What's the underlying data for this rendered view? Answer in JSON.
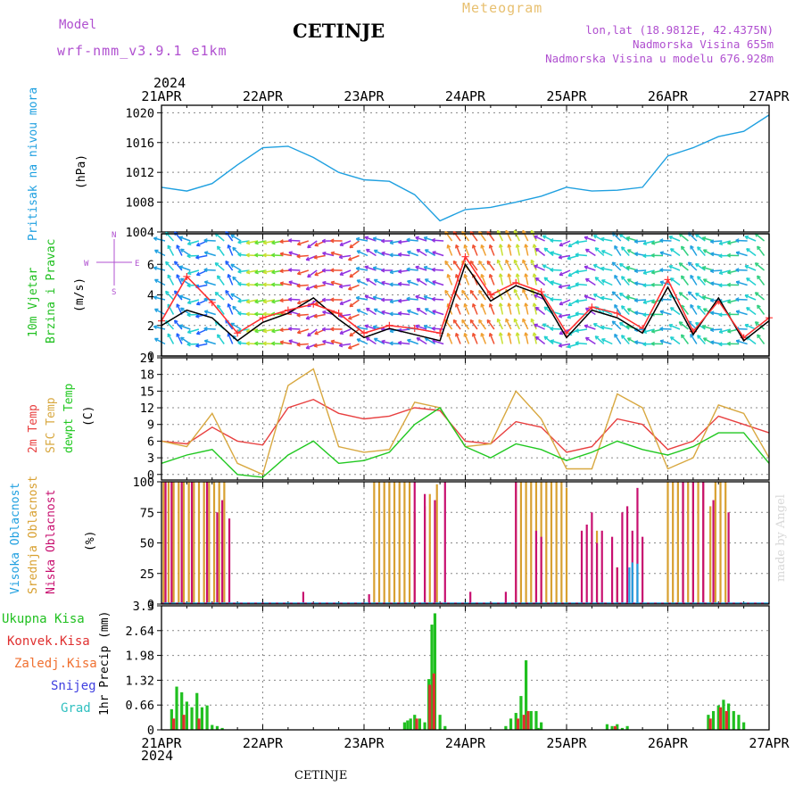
{
  "header": {
    "model_label": "Model",
    "model_name": "wrf-nmm_v3.9.1  e1km",
    "station": "CETINJE",
    "product": "Meteogram",
    "coords": "lon,lat (18.9812E, 42.4375N)",
    "elevation": "Nadmorska Visina 655m",
    "model_elevation": "Nadmorska Visina u modelu 676.928m",
    "year": "2024",
    "footer_station": "CETINJE",
    "credit": "made by Angel"
  },
  "colors": {
    "pressure": "#1fa0e0",
    "wind_speed": "#000000",
    "gust": "#ff3030",
    "temp2m": "#e84040",
    "sfc_temp": "#d8a840",
    "dewpt": "#20c820",
    "high_cloud": "#20a0e0",
    "mid_cloud": "#d8a030",
    "low_cloud": "#c81070",
    "total_precip": "#20c020",
    "convective": "#e03030",
    "frozen": "#f07030",
    "snow": "#4040e0",
    "graupel": "#30c0c0",
    "label_purple": "#b050d0"
  },
  "x_axis": {
    "categories": [
      "21APR",
      "22APR",
      "23APR",
      "24APR",
      "25APR",
      "26APR",
      "27APR"
    ]
  },
  "panels": {
    "pressure": {
      "ylabel_main": "Pritisak na nivou mora",
      "unit": "(hPa)"
    },
    "wind": {
      "ylabel_main": "10m Vjetar",
      "ylabel_sub": "Brzina i Pravac",
      "unit": "(m/s)",
      "compass": {
        "w": "W",
        "e": "E",
        "n": "N",
        "s": "S"
      }
    },
    "temp": {
      "ylabel_2m": "2m Temp",
      "ylabel_sfc": "SFC Temp",
      "ylabel_dew": "dewpt Temp",
      "unit": "(C)"
    },
    "cloud": {
      "ylabel_high": "Visoka Oblacnost",
      "ylabel_mid": "Srednja Oblacnost",
      "ylabel_low": "Niska Oblacnost",
      "unit": "(%)"
    },
    "precip": {
      "legend": [
        "Ukupna Kisa",
        "Konvek.Kisa",
        "Zaledj.Kisa",
        "Snijeg",
        "Grad"
      ],
      "ylabel": "1hr Precip (mm)"
    }
  },
  "chart_data": [
    {
      "type": "line",
      "title": "Pritisak na nivou mora",
      "ylabel": "(hPa)",
      "ylim": [
        1004,
        1021
      ],
      "yticks": [
        1004,
        1008,
        1012,
        1016,
        1020
      ],
      "x_days": [
        0,
        0.25,
        0.5,
        0.75,
        1.0,
        1.25,
        1.5,
        1.75,
        2.0,
        2.25,
        2.5,
        2.75,
        3.0,
        3.25,
        3.5,
        3.75,
        4.0,
        4.25,
        4.5,
        4.75,
        5.0,
        5.25,
        5.5,
        5.75,
        6.0
      ],
      "series": [
        {
          "key": "pressure",
          "values": [
            1010.0,
            1009.5,
            1010.5,
            1013.0,
            1015.3,
            1015.5,
            1014.0,
            1012.0,
            1011.0,
            1010.8,
            1009.0,
            1005.5,
            1007.0,
            1007.3,
            1008.0,
            1008.8,
            1010.0,
            1009.5,
            1009.6,
            1010.0,
            1014.2,
            1015.3,
            1016.8,
            1017.5,
            1019.7
          ]
        }
      ],
      "grid": true
    },
    {
      "type": "line",
      "title": "10m Vjetar Brzina i Pravac",
      "ylabel": "(m/s)",
      "ylim": [
        0,
        8
      ],
      "yticks": [
        0,
        2,
        4,
        6
      ],
      "x_days": [
        0,
        0.25,
        0.5,
        0.75,
        1.0,
        1.25,
        1.5,
        1.75,
        2.0,
        2.25,
        2.5,
        2.75,
        3.0,
        3.25,
        3.5,
        3.75,
        4.0,
        4.25,
        4.5,
        4.75,
        5.0,
        5.25,
        5.5,
        5.75,
        6.0
      ],
      "series": [
        {
          "key": "wind_speed",
          "values": [
            2.0,
            3.0,
            2.5,
            1.0,
            2.2,
            2.8,
            3.8,
            2.4,
            1.2,
            1.8,
            1.4,
            1.0,
            6.0,
            3.6,
            4.6,
            4.0,
            1.2,
            3.0,
            2.5,
            1.5,
            4.5,
            1.4,
            3.8,
            1.0,
            2.3
          ]
        },
        {
          "key": "gust",
          "values": [
            2.3,
            5.2,
            3.5,
            1.5,
            2.5,
            3.0,
            3.4,
            2.8,
            1.5,
            2.0,
            1.8,
            1.5,
            6.5,
            4.0,
            4.8,
            4.2,
            1.5,
            3.2,
            2.8,
            1.8,
            5.0,
            1.6,
            3.6,
            1.2,
            2.5
          ]
        }
      ],
      "grid": true
    },
    {
      "type": "line",
      "title": "2m Temp / SFC Temp / dewpt Temp",
      "ylabel": "(C)",
      "ylim": [
        -1,
        21
      ],
      "yticks": [
        0,
        3,
        6,
        9,
        12,
        15,
        18,
        21
      ],
      "x_days": [
        0,
        0.25,
        0.5,
        0.75,
        1.0,
        1.25,
        1.5,
        1.75,
        2.0,
        2.25,
        2.5,
        2.75,
        3.0,
        3.25,
        3.5,
        3.75,
        4.0,
        4.25,
        4.5,
        4.75,
        5.0,
        5.25,
        5.5,
        5.75,
        6.0
      ],
      "series": [
        {
          "key": "temp2m",
          "values": [
            6.0,
            5.5,
            8.5,
            6.0,
            5.3,
            12.0,
            13.5,
            11.0,
            10.0,
            10.5,
            12.0,
            11.5,
            6.0,
            5.5,
            9.5,
            8.5,
            4.0,
            5.0,
            10.0,
            9.0,
            4.5,
            6.0,
            10.5,
            9.0,
            7.5
          ]
        },
        {
          "key": "sfc_temp",
          "values": [
            6.0,
            5.0,
            11.0,
            2.0,
            0.0,
            16.0,
            19.0,
            5.0,
            4.0,
            4.5,
            13.0,
            12.0,
            5.0,
            5.5,
            15.0,
            10.0,
            1.0,
            1.0,
            14.5,
            12.0,
            1.0,
            3.0,
            12.5,
            11.0,
            3.0
          ]
        },
        {
          "key": "dewpt",
          "values": [
            2.0,
            3.5,
            4.5,
            0.0,
            -0.5,
            3.5,
            6.0,
            2.0,
            2.5,
            4.0,
            9.0,
            12.0,
            5.0,
            3.0,
            5.5,
            4.5,
            2.5,
            4.0,
            6.0,
            4.5,
            3.5,
            5.0,
            7.5,
            7.5,
            2.0
          ]
        }
      ],
      "grid": true
    },
    {
      "type": "bar",
      "title": "Visoka / Srednja / Niska Oblacnost",
      "ylabel": "(%)",
      "ylim": [
        0,
        100
      ],
      "yticks": [
        0,
        25,
        50,
        75,
        100
      ],
      "series": [
        {
          "key": "mid_cloud",
          "x_days": [
            0.02,
            0.07,
            0.12,
            0.17,
            0.22,
            0.27,
            0.32,
            0.37,
            0.42,
            0.47,
            0.52,
            0.57,
            0.62,
            2.1,
            2.15,
            2.2,
            2.25,
            2.3,
            2.35,
            2.4,
            2.45,
            2.5,
            2.6,
            2.65,
            2.72,
            3.5,
            3.55,
            3.6,
            3.65,
            3.7,
            3.75,
            3.8,
            3.85,
            3.9,
            3.95,
            4.0,
            4.3,
            4.5,
            5.0,
            5.05,
            5.1,
            5.15,
            5.2,
            5.25,
            5.3,
            5.35,
            5.42,
            5.47,
            5.52,
            5.57
          ],
          "values": [
            100,
            100,
            100,
            100,
            100,
            100,
            100,
            100,
            100,
            100,
            100,
            100,
            100,
            100,
            100,
            100,
            100,
            100,
            100,
            100,
            100,
            75,
            80,
            90,
            98,
            100,
            100,
            100,
            100,
            100,
            100,
            100,
            100,
            100,
            100,
            95,
            60,
            30,
            100,
            100,
            100,
            100,
            100,
            100,
            100,
            100,
            80,
            100,
            100,
            100
          ]
        },
        {
          "key": "low_cloud",
          "x_days": [
            0.04,
            0.1,
            0.2,
            0.3,
            0.45,
            0.55,
            0.6,
            0.67,
            1.4,
            2.05,
            2.5,
            2.6,
            2.7,
            2.8,
            3.05,
            3.4,
            3.5,
            3.7,
            3.75,
            4.15,
            4.2,
            4.25,
            4.3,
            4.35,
            4.45,
            4.5,
            4.55,
            4.6,
            4.65,
            4.7,
            4.75,
            5.15,
            5.25,
            5.35,
            5.45,
            5.6
          ],
          "values": [
            100,
            100,
            100,
            100,
            100,
            75,
            85,
            70,
            10,
            8,
            100,
            90,
            85,
            100,
            10,
            10,
            100,
            60,
            55,
            60,
            65,
            75,
            50,
            60,
            55,
            30,
            75,
            80,
            60,
            95,
            55,
            100,
            100,
            100,
            85,
            75
          ]
        },
        {
          "key": "high_cloud",
          "x_days": [
            4.62,
            4.65,
            4.7
          ],
          "values": [
            30,
            34,
            33
          ]
        }
      ],
      "grid": true
    },
    {
      "type": "bar",
      "title": "1hr Precip",
      "ylabel": "1hr Precip (mm)",
      "ylim": [
        0,
        3.3
      ],
      "yticks": [
        0,
        0.66,
        1.32,
        1.98,
        2.64,
        3.3
      ],
      "series": [
        {
          "key": "total_precip",
          "x_days": [
            0.1,
            0.15,
            0.2,
            0.25,
            0.3,
            0.35,
            0.4,
            0.45,
            0.5,
            0.55,
            0.6,
            2.4,
            2.43,
            2.46,
            2.5,
            2.55,
            2.6,
            2.64,
            2.67,
            2.7,
            2.75,
            2.8,
            3.4,
            3.45,
            3.5,
            3.55,
            3.6,
            3.65,
            3.7,
            3.72,
            3.75,
            4.4,
            4.45,
            4.5,
            4.55,
            4.6,
            5.4,
            5.45,
            5.5,
            5.55,
            5.6,
            5.65,
            5.7,
            5.75
          ],
          "values": [
            0.55,
            1.15,
            1.0,
            0.75,
            0.6,
            0.98,
            0.6,
            0.65,
            0.13,
            0.1,
            0.05,
            0.2,
            0.25,
            0.3,
            0.4,
            0.3,
            0.2,
            1.35,
            2.8,
            3.1,
            0.4,
            0.1,
            0.1,
            0.3,
            0.45,
            0.9,
            1.85,
            0.5,
            0.5,
            0.05,
            0.2,
            0.15,
            0.1,
            0.15,
            0.05,
            0.1,
            0.4,
            0.5,
            0.65,
            0.8,
            0.7,
            0.5,
            0.4,
            0.2
          ]
        },
        {
          "key": "convective",
          "x_days": [
            0.12,
            0.22,
            0.37,
            2.52,
            2.65,
            2.69,
            3.52,
            3.58,
            3.62,
            4.48,
            5.42,
            5.52,
            5.58
          ],
          "values": [
            0.3,
            0.4,
            0.3,
            0.3,
            1.2,
            1.5,
            0.3,
            0.4,
            0.5,
            0.1,
            0.3,
            0.6,
            0.5
          ]
        }
      ],
      "legend": [
        "Ukupna Kisa",
        "Konvek.Kisa",
        "Zaledj.Kisa",
        "Snijeg",
        "Grad"
      ],
      "grid": true
    }
  ]
}
